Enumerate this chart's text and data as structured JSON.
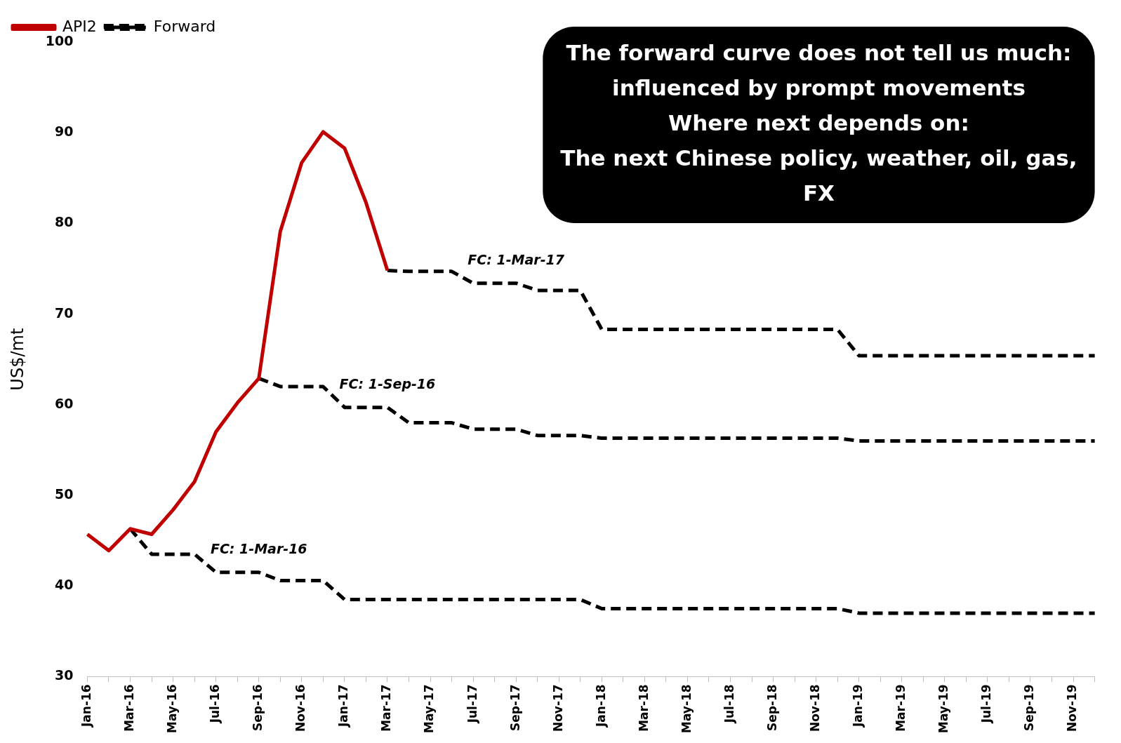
{
  "chart_data": {
    "type": "line",
    "ylabel": "US$/mt",
    "categories": [
      "Jan-16",
      null,
      "Mar-16",
      null,
      "May-16",
      null,
      "Jul-16",
      null,
      "Sep-16",
      null,
      "Nov-16",
      null,
      "Jan-17",
      null,
      "Mar-17",
      null,
      "May-17",
      null,
      "Jul-17",
      null,
      "Sep-17",
      null,
      "Nov-17",
      null,
      "Jan-18",
      null,
      "Mar-18",
      null,
      "May-18",
      null,
      "Jul-18",
      null,
      "Sep-18",
      null,
      "Nov-18",
      null,
      "Jan-19",
      null,
      "Mar-19",
      null,
      "May-19",
      null,
      "Jul-19",
      null,
      "Sep-19",
      null,
      "Nov-19",
      null
    ],
    "series": [
      {
        "name": "API2",
        "color": "#c00000",
        "line_style": "solid",
        "values": [
          45.7,
          43.9,
          46.3,
          45.7,
          48.4,
          51.5,
          57.0,
          60.2,
          62.9,
          79.1,
          86.7,
          90.1,
          88.3,
          82.3,
          74.8,
          null,
          null,
          null,
          null,
          null,
          null,
          null,
          null,
          null,
          null,
          null,
          null,
          null,
          null,
          null,
          null,
          null,
          null,
          null,
          null,
          null,
          null,
          null,
          null,
          null,
          null,
          null,
          null,
          null,
          null,
          null,
          null,
          null
        ]
      },
      {
        "name": "Forward",
        "color": "#000000",
        "line_style": "dashed",
        "values": [
          null,
          null,
          46.3,
          43.5,
          43.5,
          43.5,
          41.5,
          41.5,
          41.5,
          40.6,
          40.6,
          40.6,
          38.5,
          38.5,
          38.5,
          38.5,
          38.5,
          38.5,
          38.5,
          38.5,
          38.5,
          38.5,
          38.5,
          38.5,
          37.5,
          37.5,
          37.5,
          37.5,
          37.5,
          37.5,
          37.5,
          37.5,
          37.5,
          37.5,
          37.5,
          37.5,
          37.0,
          37.0,
          37.0,
          37.0,
          37.0,
          37.0,
          37.0,
          37.0,
          37.0,
          37.0,
          37.0,
          37.0
        ]
      },
      {
        "color": "#000000",
        "line_style": "dashed",
        "values": [
          null,
          null,
          null,
          null,
          null,
          null,
          null,
          null,
          62.9,
          62.0,
          62.0,
          62.0,
          59.7,
          59.7,
          59.7,
          58.0,
          58.0,
          58.0,
          57.3,
          57.3,
          57.3,
          56.6,
          56.6,
          56.6,
          56.3,
          56.3,
          56.3,
          56.3,
          56.3,
          56.3,
          56.3,
          56.3,
          56.3,
          56.3,
          56.3,
          56.3,
          56.0,
          56.0,
          56.0,
          56.0,
          56.0,
          56.0,
          56.0,
          56.0,
          56.0,
          56.0,
          56.0,
          56.0
        ]
      },
      {
        "color": "#000000",
        "line_style": "dashed",
        "values": [
          null,
          null,
          null,
          null,
          null,
          null,
          null,
          null,
          null,
          null,
          null,
          null,
          null,
          null,
          74.8,
          74.7,
          74.7,
          74.7,
          73.4,
          73.4,
          73.4,
          72.6,
          72.6,
          72.6,
          68.3,
          68.3,
          68.3,
          68.3,
          68.3,
          68.3,
          68.3,
          68.3,
          68.3,
          68.3,
          68.3,
          68.3,
          65.4,
          65.4,
          65.4,
          65.4,
          65.4,
          65.4,
          65.4,
          65.4,
          65.4,
          65.4,
          65.4,
          65.4
        ]
      }
    ],
    "ylim": [
      30,
      100
    ],
    "yticks": [
      30,
      40,
      50,
      60,
      70,
      80,
      90,
      100
    ],
    "grid": false,
    "legend": "top left",
    "marker": "none",
    "annotations": [
      "FC: 1-Mar-16",
      "FC: 1-Sep-16",
      "FC: 1-Mar-17",
      "The forward curve does not tell us much:\ninfluenced by prompt movements\nWhere next depends on:\nThe next Chinese policy, weather, oil, gas,\nFX"
    ]
  }
}
